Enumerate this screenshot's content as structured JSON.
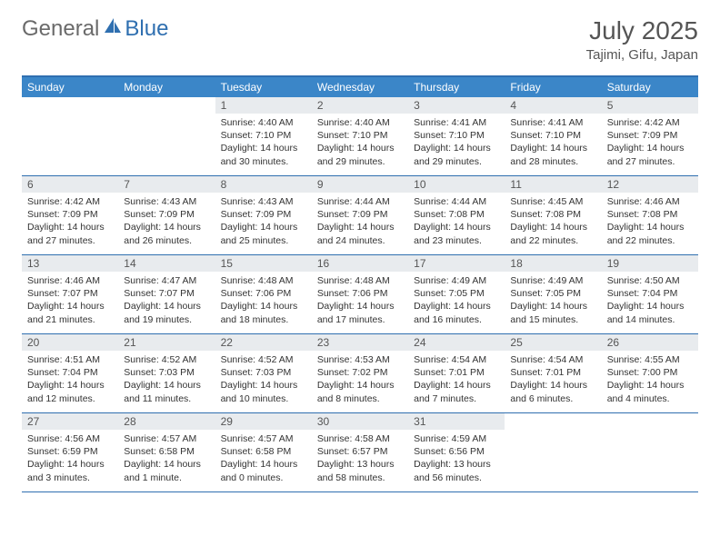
{
  "brand": {
    "part1": "General",
    "part2": "Blue"
  },
  "title": "July 2025",
  "location": "Tajimi, Gifu, Japan",
  "colors": {
    "header_bar": "#3b86c8",
    "header_border": "#2f6fb0",
    "daynum_bg": "#e8ebee",
    "text": "#333333",
    "muted": "#6a6a6a"
  },
  "dow": [
    "Sunday",
    "Monday",
    "Tuesday",
    "Wednesday",
    "Thursday",
    "Friday",
    "Saturday"
  ],
  "weeks": [
    [
      null,
      null,
      {
        "n": "1",
        "sr": "4:40 AM",
        "ss": "7:10 PM",
        "dl": "14 hours and 30 minutes."
      },
      {
        "n": "2",
        "sr": "4:40 AM",
        "ss": "7:10 PM",
        "dl": "14 hours and 29 minutes."
      },
      {
        "n": "3",
        "sr": "4:41 AM",
        "ss": "7:10 PM",
        "dl": "14 hours and 29 minutes."
      },
      {
        "n": "4",
        "sr": "4:41 AM",
        "ss": "7:10 PM",
        "dl": "14 hours and 28 minutes."
      },
      {
        "n": "5",
        "sr": "4:42 AM",
        "ss": "7:09 PM",
        "dl": "14 hours and 27 minutes."
      }
    ],
    [
      {
        "n": "6",
        "sr": "4:42 AM",
        "ss": "7:09 PM",
        "dl": "14 hours and 27 minutes."
      },
      {
        "n": "7",
        "sr": "4:43 AM",
        "ss": "7:09 PM",
        "dl": "14 hours and 26 minutes."
      },
      {
        "n": "8",
        "sr": "4:43 AM",
        "ss": "7:09 PM",
        "dl": "14 hours and 25 minutes."
      },
      {
        "n": "9",
        "sr": "4:44 AM",
        "ss": "7:09 PM",
        "dl": "14 hours and 24 minutes."
      },
      {
        "n": "10",
        "sr": "4:44 AM",
        "ss": "7:08 PM",
        "dl": "14 hours and 23 minutes."
      },
      {
        "n": "11",
        "sr": "4:45 AM",
        "ss": "7:08 PM",
        "dl": "14 hours and 22 minutes."
      },
      {
        "n": "12",
        "sr": "4:46 AM",
        "ss": "7:08 PM",
        "dl": "14 hours and 22 minutes."
      }
    ],
    [
      {
        "n": "13",
        "sr": "4:46 AM",
        "ss": "7:07 PM",
        "dl": "14 hours and 21 minutes."
      },
      {
        "n": "14",
        "sr": "4:47 AM",
        "ss": "7:07 PM",
        "dl": "14 hours and 19 minutes."
      },
      {
        "n": "15",
        "sr": "4:48 AM",
        "ss": "7:06 PM",
        "dl": "14 hours and 18 minutes."
      },
      {
        "n": "16",
        "sr": "4:48 AM",
        "ss": "7:06 PM",
        "dl": "14 hours and 17 minutes."
      },
      {
        "n": "17",
        "sr": "4:49 AM",
        "ss": "7:05 PM",
        "dl": "14 hours and 16 minutes."
      },
      {
        "n": "18",
        "sr": "4:49 AM",
        "ss": "7:05 PM",
        "dl": "14 hours and 15 minutes."
      },
      {
        "n": "19",
        "sr": "4:50 AM",
        "ss": "7:04 PM",
        "dl": "14 hours and 14 minutes."
      }
    ],
    [
      {
        "n": "20",
        "sr": "4:51 AM",
        "ss": "7:04 PM",
        "dl": "14 hours and 12 minutes."
      },
      {
        "n": "21",
        "sr": "4:52 AM",
        "ss": "7:03 PM",
        "dl": "14 hours and 11 minutes."
      },
      {
        "n": "22",
        "sr": "4:52 AM",
        "ss": "7:03 PM",
        "dl": "14 hours and 10 minutes."
      },
      {
        "n": "23",
        "sr": "4:53 AM",
        "ss": "7:02 PM",
        "dl": "14 hours and 8 minutes."
      },
      {
        "n": "24",
        "sr": "4:54 AM",
        "ss": "7:01 PM",
        "dl": "14 hours and 7 minutes."
      },
      {
        "n": "25",
        "sr": "4:54 AM",
        "ss": "7:01 PM",
        "dl": "14 hours and 6 minutes."
      },
      {
        "n": "26",
        "sr": "4:55 AM",
        "ss": "7:00 PM",
        "dl": "14 hours and 4 minutes."
      }
    ],
    [
      {
        "n": "27",
        "sr": "4:56 AM",
        "ss": "6:59 PM",
        "dl": "14 hours and 3 minutes."
      },
      {
        "n": "28",
        "sr": "4:57 AM",
        "ss": "6:58 PM",
        "dl": "14 hours and 1 minute."
      },
      {
        "n": "29",
        "sr": "4:57 AM",
        "ss": "6:58 PM",
        "dl": "14 hours and 0 minutes."
      },
      {
        "n": "30",
        "sr": "4:58 AM",
        "ss": "6:57 PM",
        "dl": "13 hours and 58 minutes."
      },
      {
        "n": "31",
        "sr": "4:59 AM",
        "ss": "6:56 PM",
        "dl": "13 hours and 56 minutes."
      },
      null,
      null
    ]
  ],
  "labels": {
    "sunrise": "Sunrise: ",
    "sunset": "Sunset: ",
    "daylight": "Daylight: "
  }
}
